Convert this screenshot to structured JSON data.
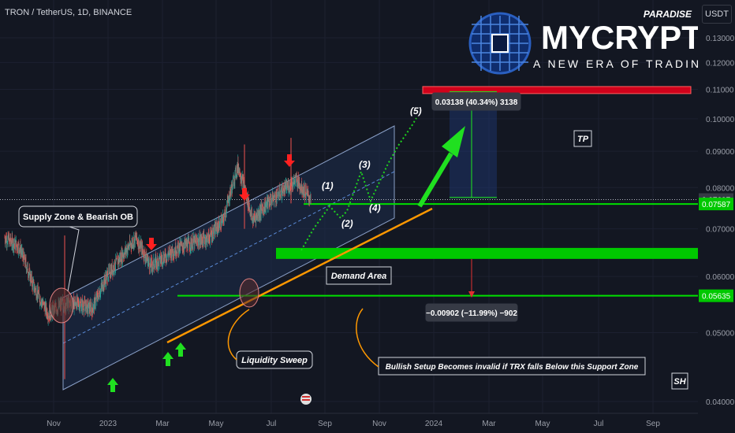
{
  "symbol_line": "TRON / TetherUS, 1D, BINANCE",
  "currency_button": "USDT",
  "logo": {
    "name": "MYCRYPTO",
    "badge": "PARADISE",
    "tagline": "A NEW ERA OF TRADING"
  },
  "colors": {
    "background": "#131722",
    "up_candle": "#26a69a",
    "down_candle": "#ef5350",
    "tp_zone": "#d0021b",
    "demand_zone": "#00c800",
    "support_line": "#00e000",
    "trendline": "#ff9800",
    "wave_path": "#1fd21f",
    "channel_fill": "#1e2d4d"
  },
  "annotations": {
    "supply_zone": "Supply Zone & Bearish OB",
    "demand_area": "Demand Area",
    "liquidity_sweep": "Liquidity Sweep",
    "invalidation": "Bullish Setup Becomes invalid if TRX falls Below this Support Zone",
    "tp": "TP",
    "sh": "SH",
    "measure_up": "0.03138 (40.34%) 3138",
    "measure_down": "−0.00902 (−11.99%) −902",
    "waves": [
      "(1)",
      "(2)",
      "(3)",
      "(4)",
      "(5)"
    ]
  },
  "chart_data": {
    "type": "candlestick",
    "symbol": "TRXUSDT",
    "timeframe": "1D",
    "exchange": "BINANCE",
    "y_scale": "log",
    "ylim": [
      0.04,
      0.135
    ],
    "x_tick_labels": [
      "Nov",
      "2023",
      "Mar",
      "May",
      "Jul",
      "Sep",
      "Nov",
      "2024",
      "Mar",
      "May",
      "Jul",
      "Sep"
    ],
    "y_tick_labels": [
      "0.13000",
      "0.12000",
      "0.11000",
      "0.10000",
      "0.09000",
      "0.08000",
      "0.07000",
      "0.06000",
      "0.05000",
      "0.04000"
    ],
    "current_price": "0.07697",
    "price_labels": [
      {
        "value": "0.07697",
        "color": "#363a45"
      },
      {
        "value": "0.07587",
        "color": "#00c800"
      },
      {
        "value": "0.05635",
        "color": "#00c800"
      }
    ],
    "price_series": [
      [
        "Oct",
        0.068
      ],
      [
        "Oct",
        0.066
      ],
      [
        "Nov",
        0.058
      ],
      [
        "Nov",
        0.053
      ],
      [
        "Dec",
        0.055
      ],
      [
        "Dec",
        0.055
      ],
      [
        "2023",
        0.054
      ],
      [
        "2023",
        0.06
      ],
      [
        "Feb",
        0.064
      ],
      [
        "Feb",
        0.068
      ],
      [
        "Mar",
        0.062
      ],
      [
        "Mar",
        0.064
      ],
      [
        "Apr",
        0.066
      ],
      [
        "Apr",
        0.067
      ],
      [
        "May",
        0.068
      ],
      [
        "May",
        0.072
      ],
      [
        "Jun",
        0.086
      ],
      [
        "Jun",
        0.072
      ],
      [
        "Jul",
        0.076
      ],
      [
        "Jul",
        0.079
      ],
      [
        "Jul",
        0.082
      ],
      [
        "Aug",
        0.077
      ]
    ],
    "zones": [
      {
        "name": "TP",
        "from": 0.1085,
        "to": 0.111
      },
      {
        "name": "Demand Area",
        "from": 0.0635,
        "to": 0.0658
      }
    ],
    "support_lines": [
      0.07587,
      0.05635
    ]
  }
}
